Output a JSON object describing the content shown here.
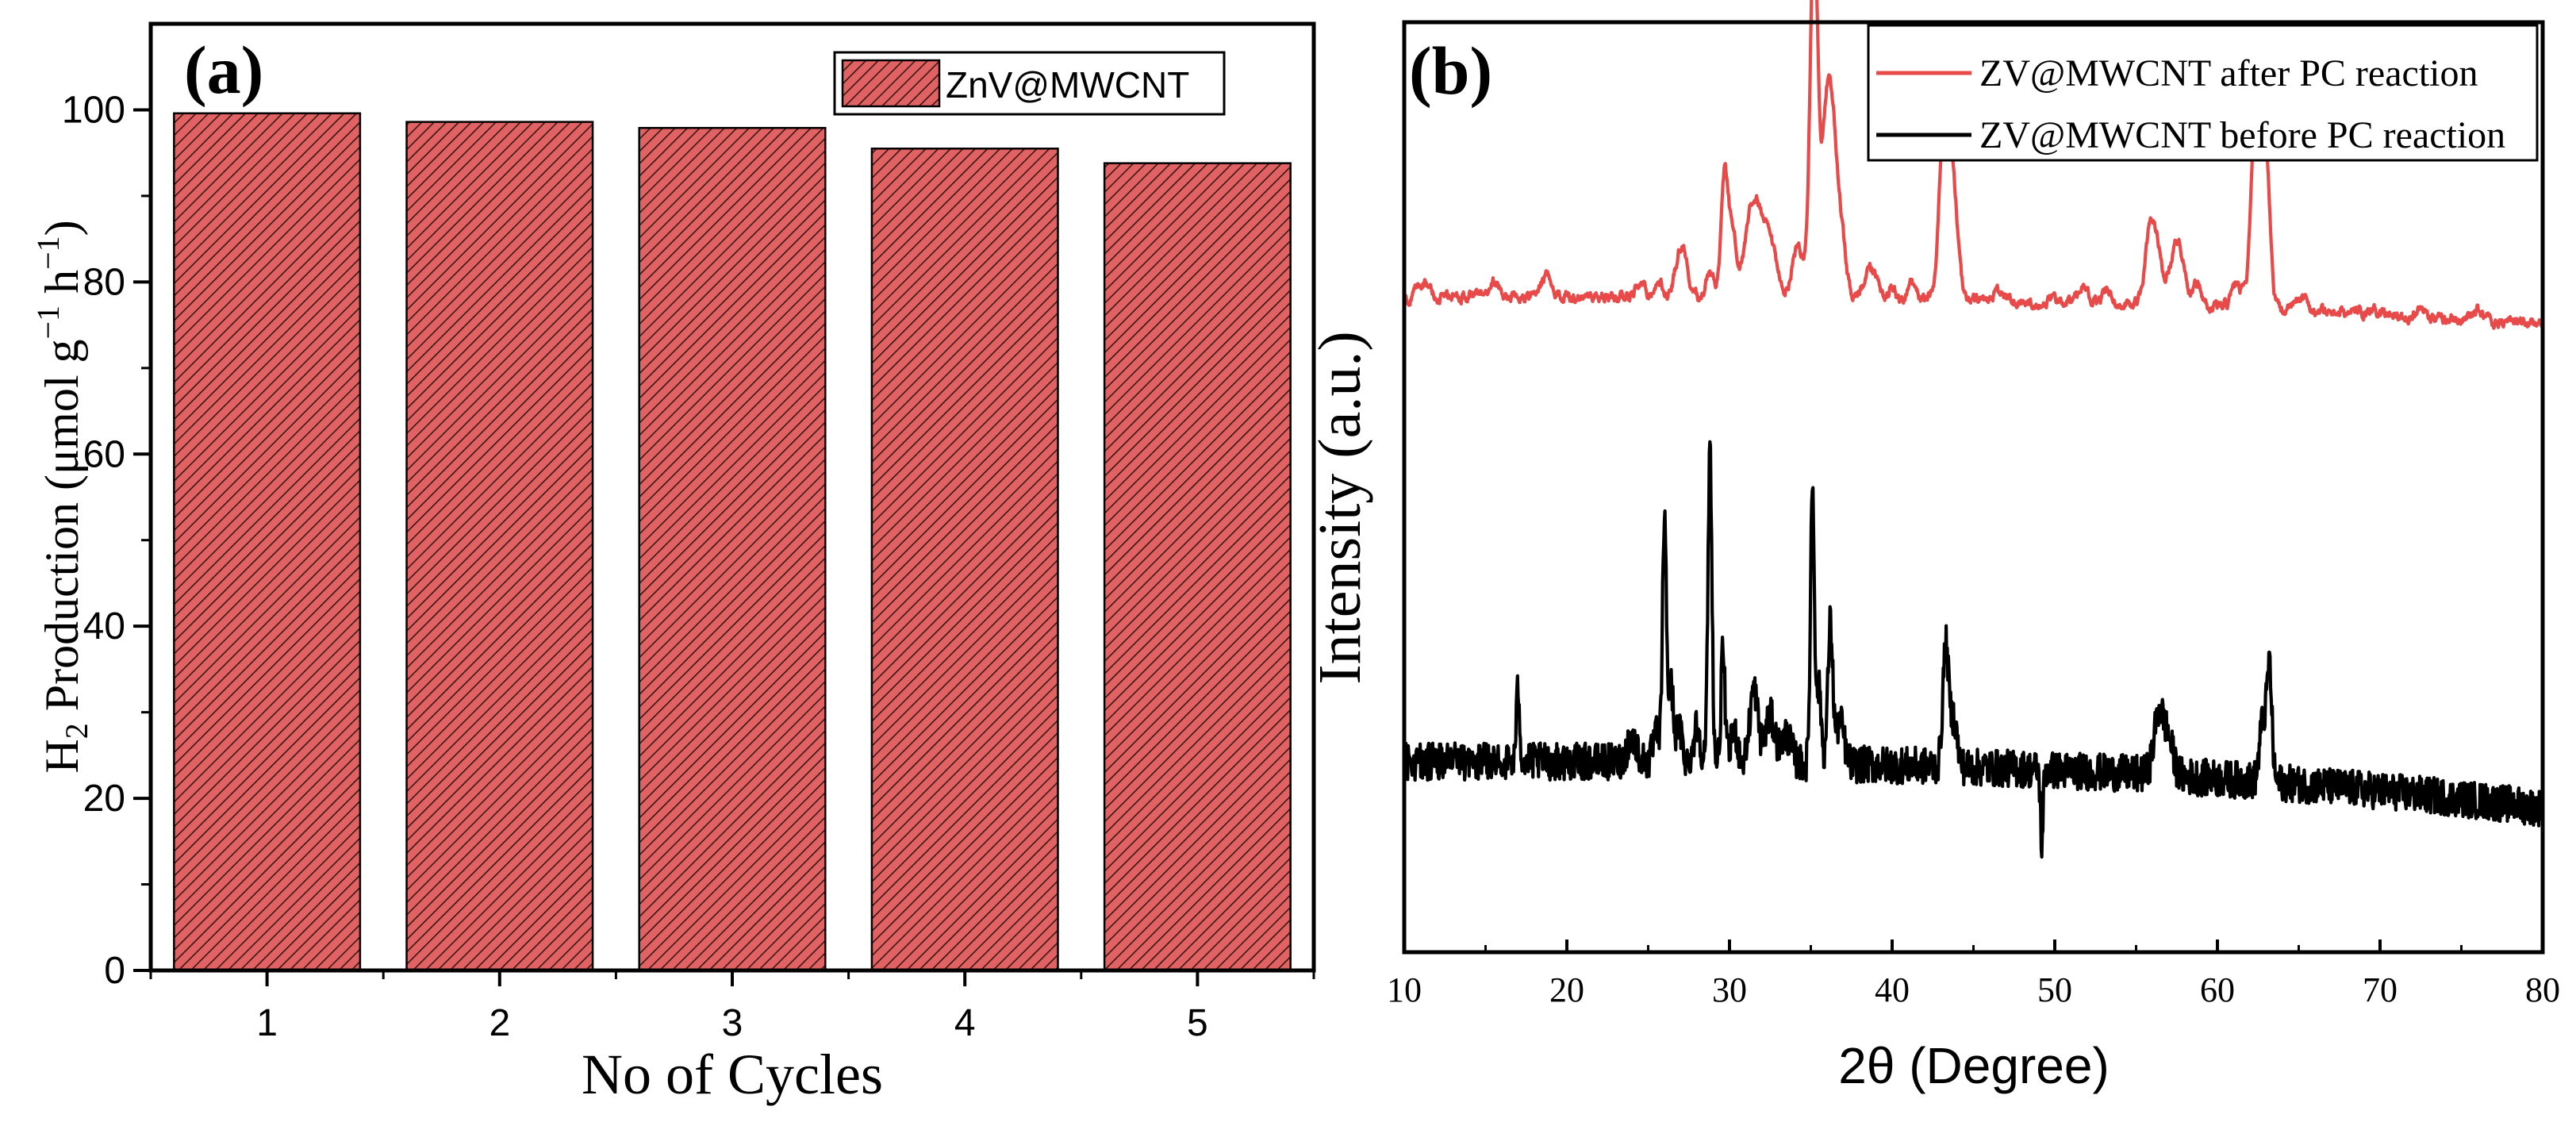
{
  "chart_data": [
    {
      "id": "a",
      "type": "bar",
      "panel_label": "(a)",
      "categories": [
        "1",
        "2",
        "3",
        "4",
        "5"
      ],
      "series": [
        {
          "name": "ZnV@MWCNT",
          "values": [
            99.6,
            98.6,
            97.9,
            95.5,
            93.8
          ]
        }
      ],
      "xlabel": "No of Cycles",
      "ylabel": {
        "prefix": "H",
        "sub": "2",
        "mid": " Production (μmol g",
        "sup1": "−1",
        "mid2": " h",
        "sup2": "−1",
        "suffix": ")"
      },
      "ylim": [
        0,
        110
      ],
      "yticks": [
        0,
        20,
        40,
        60,
        80,
        100
      ],
      "legend": {
        "label": "ZnV@MWCNT",
        "position": "top-right"
      },
      "bar_color": "#e16262"
    },
    {
      "id": "b",
      "type": "line",
      "panel_label": "(b)",
      "xlabel": "2θ (Degree)",
      "ylabel": "Intensity (a.u.)",
      "xlim": [
        10,
        80
      ],
      "xticks": [
        10,
        20,
        30,
        40,
        50,
        60,
        70,
        80
      ],
      "ylim": [
        0,
        100
      ],
      "yticks_shown": false,
      "legend": {
        "position": "top-right"
      },
      "series": [
        {
          "name": "ZV@MWCNT after PC reaction",
          "color": "#e84a4a",
          "baseline": 70.5,
          "noise": 0.7,
          "peaks": [
            [
              11.2,
              1.6,
              0.3
            ],
            [
              15.5,
              1.8,
              0.3
            ],
            [
              18.8,
              2.5,
              0.3
            ],
            [
              24.5,
              1.5,
              0.3
            ],
            [
              25.6,
              1.4,
              0.3
            ],
            [
              26.8,
              3.0,
              0.25
            ],
            [
              27.2,
              4.5,
              0.25
            ],
            [
              28.8,
              2.5,
              0.25
            ],
            [
              29.7,
              13.0,
              0.22
            ],
            [
              30.2,
              6.0,
              0.25
            ],
            [
              31.5,
              10.5,
              0.5
            ],
            [
              32.5,
              5.0,
              0.4
            ],
            [
              34.2,
              5.5,
              0.35
            ],
            [
              35.2,
              39.5,
              0.24
            ],
            [
              35.9,
              16.0,
              0.25
            ],
            [
              36.3,
              16.0,
              0.25
            ],
            [
              36.8,
              8.0,
              0.3
            ],
            [
              38.7,
              3.0,
              0.4
            ],
            [
              40.0,
              1.2,
              0.2
            ],
            [
              41.2,
              1.5,
              0.2
            ],
            [
              43.3,
              24.0,
              0.33
            ],
            [
              43.9,
              6.0,
              0.25
            ],
            [
              46.5,
              1.0,
              0.3
            ],
            [
              51.7,
              1.5,
              0.3
            ],
            [
              53.2,
              1.2,
              0.3
            ],
            [
              55.8,
              6.5,
              0.3
            ],
            [
              56.3,
              6.0,
              0.3
            ],
            [
              57.2,
              4.0,
              0.3
            ],
            [
              57.7,
              5.5,
              0.3
            ],
            [
              58.7,
              2.5,
              0.3
            ],
            [
              61.2,
              2.5,
              0.3
            ],
            [
              62.4,
              22.5,
              0.3
            ],
            [
              63.0,
              15.0,
              0.25
            ],
            [
              65.2,
              1.5,
              0.3
            ],
            [
              72.5,
              1.2,
              0.3
            ],
            [
              76.0,
              1.0,
              0.3
            ]
          ],
          "end_value": 67.5
        },
        {
          "name": "ZV@MWCNT before PC reaction",
          "color": "#000000",
          "baseline": 20.5,
          "noise": 2.0,
          "peaks": [
            [
              17.0,
              8.0,
              0.1
            ],
            [
              24.0,
              2.5,
              0.3
            ],
            [
              25.5,
              3.0,
              0.2
            ],
            [
              26.0,
              26.0,
              0.12
            ],
            [
              26.4,
              8.0,
              0.15
            ],
            [
              26.9,
              3.5,
              0.2
            ],
            [
              28.0,
              4.0,
              0.2
            ],
            [
              28.8,
              34.0,
              0.12
            ],
            [
              29.6,
              12.0,
              0.12
            ],
            [
              30.3,
              3.5,
              0.2
            ],
            [
              31.5,
              8.0,
              0.25
            ],
            [
              32.5,
              5.0,
              0.3
            ],
            [
              33.5,
              3.0,
              0.3
            ],
            [
              35.1,
              30.0,
              0.12
            ],
            [
              35.5,
              8.0,
              0.15
            ],
            [
              36.2,
              15.0,
              0.15
            ],
            [
              36.8,
              4.5,
              0.25
            ],
            [
              43.3,
              13.0,
              0.18
            ],
            [
              43.8,
              5.0,
              0.2
            ],
            [
              56.4,
              6.5,
              0.3
            ],
            [
              57.0,
              3.5,
              0.3
            ],
            [
              62.8,
              6.5,
              0.2
            ],
            [
              63.2,
              12.0,
              0.15
            ]
          ],
          "end_value": 15.5,
          "dips": [
            [
              49.2,
              -8.0,
              0.08
            ]
          ]
        }
      ]
    }
  ]
}
